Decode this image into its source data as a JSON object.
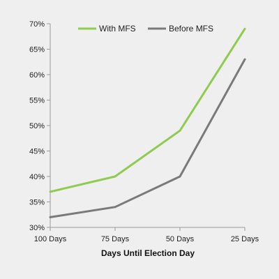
{
  "chart_data": {
    "type": "line",
    "title": "",
    "xlabel": "Days Until Election Day",
    "ylabel": "",
    "categories": [
      "100 Days",
      "75 Days",
      "50 Days",
      "25 Days"
    ],
    "series": [
      {
        "name": "With MFS",
        "values": [
          37,
          40,
          49,
          69
        ],
        "color": "#8dcc4f"
      },
      {
        "name": "Before MFS",
        "values": [
          32,
          34,
          40,
          63
        ],
        "color": "#7a7a7a"
      }
    ],
    "ylim": [
      30,
      70
    ],
    "yticks": [
      30,
      35,
      40,
      45,
      50,
      55,
      60,
      65,
      70
    ],
    "ytick_labels": [
      "30%",
      "35%",
      "40%",
      "45%",
      "50%",
      "55%",
      "60%",
      "65%",
      "70%"
    ],
    "grid": false,
    "legend_position": "top"
  }
}
